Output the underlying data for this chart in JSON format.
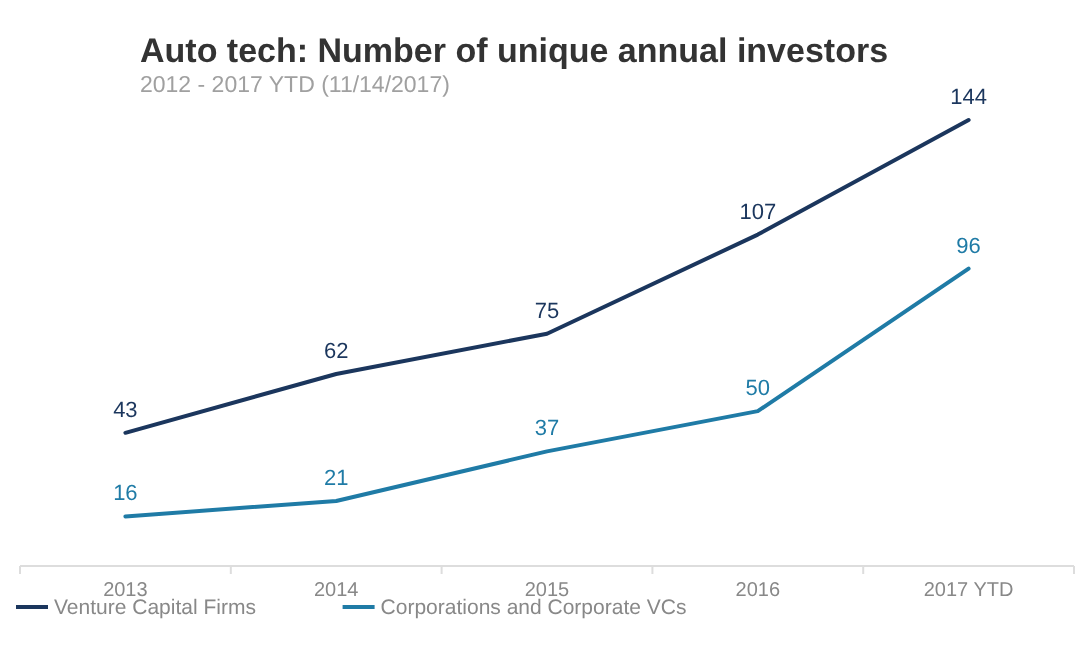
{
  "chart_data": {
    "type": "line",
    "title": "Auto tech: Number of unique annual investors",
    "subtitle": "2012 - 2017 YTD (11/14/2017)",
    "categories": [
      "2013",
      "2014",
      "2015",
      "2016",
      "2017 YTD"
    ],
    "series": [
      {
        "name": "Venture Capital Firms",
        "color": "#1b365d",
        "values": [
          43,
          62,
          75,
          107,
          144
        ]
      },
      {
        "name": "Corporations and Corporate VCs",
        "color": "#1f7ba6",
        "values": [
          16,
          21,
          37,
          50,
          96
        ]
      }
    ],
    "data_labels": true,
    "legend": "bottom left",
    "grid": false,
    "marker": "none",
    "line_style": "solid"
  }
}
